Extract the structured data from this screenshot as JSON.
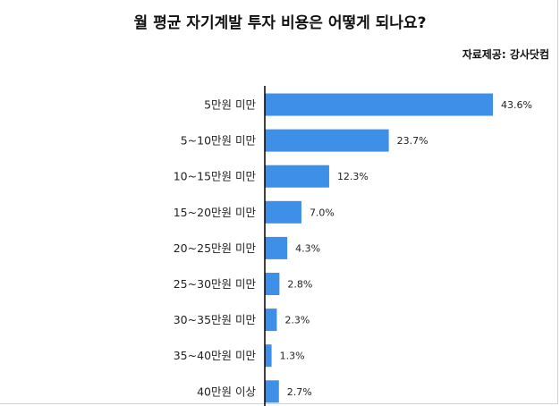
{
  "header": {
    "title": "월 평균 자기계발 투자 비용은 어떻게 되나요?",
    "source": "자료제공: 강사닷컴"
  },
  "colors": {
    "bar": "#3d8fe8",
    "axis": "#000000"
  },
  "chart_data": {
    "type": "bar",
    "orientation": "horizontal",
    "title": "월 평균 자기계발 투자 비용은 어떻게 되나요?",
    "xlabel": "",
    "ylabel": "",
    "xlim": [
      0,
      45
    ],
    "grid": false,
    "categories": [
      "5만원 미만",
      "5~10만원 미만",
      "10~15만원 미만",
      "15~20만원 미만",
      "20~25만원 미만",
      "25~30만원 미만",
      "30~35만원 미만",
      "35~40만원 미만",
      "40만원 이상"
    ],
    "values": [
      43.6,
      23.7,
      12.3,
      7.0,
      4.3,
      2.8,
      2.3,
      1.3,
      2.7
    ],
    "value_labels": [
      "43.6%",
      "23.7%",
      "12.3%",
      "7.0%",
      "4.3%",
      "2.8%",
      "2.3%",
      "1.3%",
      "2.7%"
    ]
  }
}
